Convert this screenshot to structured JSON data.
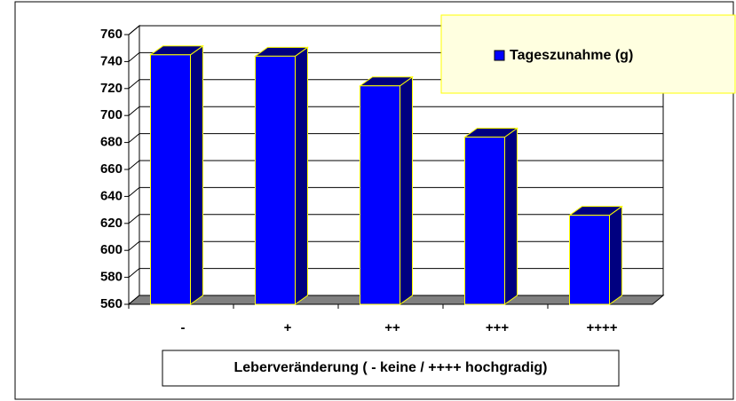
{
  "chart_data": {
    "type": "bar3d",
    "x_label": "Leberveränderung ( - keine / ++++ hochgradig)",
    "categories": [
      "-",
      "+",
      "++",
      "+++",
      "++++"
    ],
    "series": [
      {
        "name": "Tageszunahme (g)",
        "color": "#0000ff",
        "values": [
          745,
          744,
          722,
          684,
          626
        ]
      }
    ],
    "ylim": [
      560,
      760
    ],
    "yticks": [
      560,
      580,
      600,
      620,
      640,
      660,
      680,
      700,
      720,
      740,
      760
    ],
    "grid": true,
    "legend": "top-right"
  }
}
